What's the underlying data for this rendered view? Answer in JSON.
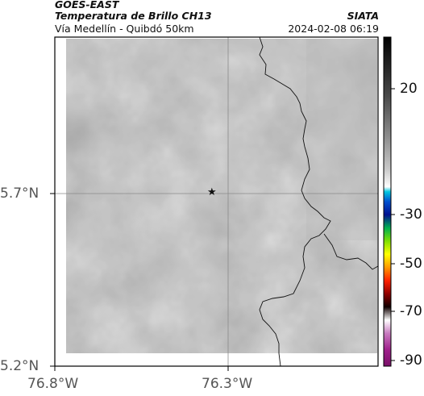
{
  "header": {
    "satellite": "GOES-EAST",
    "product": "Temperatura de Brillo CH13",
    "region": "Vía Medellín - Quibdó 50km",
    "organization": "SIATA",
    "datetime": "2024-02-08 06:19"
  },
  "axes": {
    "lat_labels": [
      "5.7°N",
      "5.2°N"
    ],
    "lon_labels": [
      "76.8°W",
      "76.3°W"
    ]
  },
  "colorbar": {
    "tick_labels": [
      "20",
      "-30",
      "-50",
      "-70",
      "-90"
    ]
  },
  "marker": {
    "symbol": "★"
  },
  "colors": {
    "map_base": "#7a7a7a",
    "frame": "#000000"
  }
}
